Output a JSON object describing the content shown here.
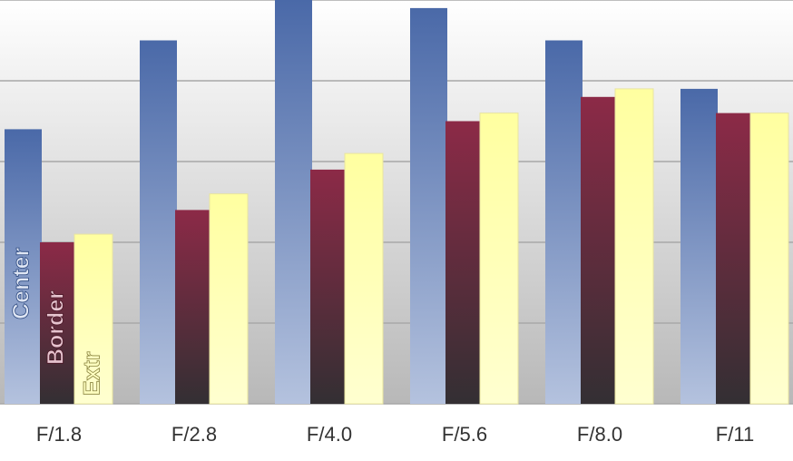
{
  "chart_data": {
    "type": "bar",
    "categories": [
      "F/1.8",
      "F/2.8",
      "F/4.0",
      "F/5.6",
      "F/8.0",
      "F/11"
    ],
    "series": [
      {
        "name": "Center",
        "color": "#4a69a8",
        "values": [
          3.4,
          4.5,
          5.0,
          4.9,
          4.5,
          3.9
        ]
      },
      {
        "name": "Border",
        "color": "#8c2a47",
        "values": [
          2.0,
          2.4,
          2.9,
          3.5,
          3.8,
          3.6
        ]
      },
      {
        "name": "Extr",
        "color": "#ffffa0",
        "values": [
          2.1,
          2.6,
          3.1,
          3.6,
          3.9,
          3.6
        ]
      }
    ],
    "ylim": [
      0,
      5
    ],
    "yticks": [
      0,
      1,
      2,
      3,
      4,
      5
    ],
    "grid": true
  }
}
